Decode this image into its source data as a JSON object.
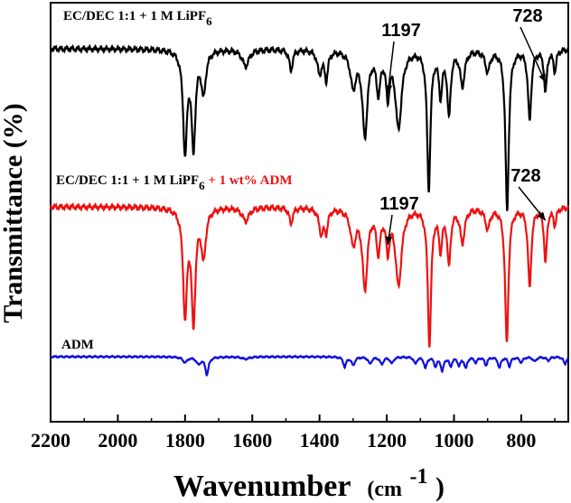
{
  "chart_data": {
    "type": "line",
    "xlabel": "Wavenumber",
    "xlabel_unit_prefix": "(cm",
    "xlabel_unit_sup": "-1",
    "xlabel_unit_suffix": ")",
    "ylabel": "Transmittance (%)",
    "xlim": [
      2200,
      660
    ],
    "x_reversed": true,
    "xticks": [
      "2200",
      "2000",
      "1800",
      "1600",
      "1400",
      "1200",
      "1000",
      "800"
    ],
    "yticks_labeled": false,
    "grid": false,
    "series": [
      {
        "label_main": "EC/DEC 1:1 + 1 M LiPF",
        "label_sub": "6",
        "label_extra": "",
        "color": "#000000",
        "baseline": 0.96,
        "peaks": [
          [
            1800,
            0.72,
            7
          ],
          [
            1775,
            0.68,
            7
          ],
          [
            1745,
            0.3,
            8
          ],
          [
            1620,
            0.12,
            12
          ],
          [
            1485,
            0.15,
            6
          ],
          [
            1400,
            0.16,
            8
          ],
          [
            1380,
            0.2,
            6
          ],
          [
            1300,
            0.25,
            10
          ],
          [
            1265,
            0.6,
            9
          ],
          [
            1225,
            0.28,
            7
          ],
          [
            1197,
            0.3,
            6
          ],
          [
            1165,
            0.55,
            11
          ],
          [
            1075,
            0.98,
            6
          ],
          [
            1040,
            0.3,
            6
          ],
          [
            1015,
            0.45,
            6
          ],
          [
            975,
            0.25,
            8
          ],
          [
            900,
            0.15,
            8
          ],
          [
            842,
            1.15,
            6
          ],
          [
            775,
            0.5,
            6
          ],
          [
            728,
            0.3,
            5
          ],
          [
            700,
            0.15,
            5
          ]
        ],
        "annotations": [
          {
            "text": "1197",
            "tip": [
              1197,
              0.32
            ]
          },
          {
            "text": "728",
            "tip": [
              728,
              0.24
            ]
          }
        ]
      },
      {
        "label_main": "EC/DEC 1:1 + 1 M LiPF",
        "label_sub": "6",
        "label_extra": " + 1 wt% ADM",
        "color": "#ee1111",
        "baseline": 0.93,
        "peaks": [
          [
            1800,
            0.78,
            7
          ],
          [
            1775,
            0.82,
            7
          ],
          [
            1745,
            0.35,
            8
          ],
          [
            1620,
            0.1,
            12
          ],
          [
            1485,
            0.12,
            6
          ],
          [
            1395,
            0.18,
            8
          ],
          [
            1380,
            0.15,
            6
          ],
          [
            1300,
            0.25,
            10
          ],
          [
            1265,
            0.58,
            9
          ],
          [
            1225,
            0.3,
            7
          ],
          [
            1197,
            0.28,
            6
          ],
          [
            1165,
            0.56,
            11
          ],
          [
            1073,
            1.0,
            6
          ],
          [
            1040,
            0.28,
            6
          ],
          [
            1015,
            0.4,
            6
          ],
          [
            975,
            0.25,
            8
          ],
          [
            900,
            0.15,
            8
          ],
          [
            843,
            1.0,
            6
          ],
          [
            775,
            0.58,
            6
          ],
          [
            728,
            0.4,
            5
          ],
          [
            700,
            0.12,
            5
          ]
        ],
        "annotations": [
          {
            "text": "1197",
            "tip": [
              1197,
              0.28
            ]
          },
          {
            "text": "728",
            "tip": [
              728,
              0.1
            ]
          }
        ]
      },
      {
        "label_main": "ADM",
        "label_sub": "",
        "label_extra": "",
        "color": "#1010dd",
        "baseline": 0.9,
        "peaks": [
          [
            1800,
            0.12,
            8
          ],
          [
            1760,
            0.15,
            8
          ],
          [
            1735,
            0.38,
            6
          ],
          [
            1620,
            0.05,
            12
          ],
          [
            1325,
            0.22,
            5
          ],
          [
            1300,
            0.18,
            6
          ],
          [
            1250,
            0.15,
            6
          ],
          [
            1215,
            0.16,
            6
          ],
          [
            1185,
            0.14,
            6
          ],
          [
            1115,
            0.15,
            5
          ],
          [
            1085,
            0.24,
            5
          ],
          [
            1055,
            0.2,
            5
          ],
          [
            1035,
            0.3,
            5
          ],
          [
            1010,
            0.2,
            5
          ],
          [
            985,
            0.18,
            5
          ],
          [
            965,
            0.24,
            5
          ],
          [
            935,
            0.12,
            5
          ],
          [
            905,
            0.18,
            5
          ],
          [
            865,
            0.24,
            5
          ],
          [
            835,
            0.2,
            5
          ],
          [
            800,
            0.12,
            6
          ],
          [
            760,
            0.1,
            6
          ],
          [
            720,
            0.08,
            6
          ],
          [
            670,
            0.16,
            5
          ]
        ],
        "annotations": []
      }
    ]
  }
}
